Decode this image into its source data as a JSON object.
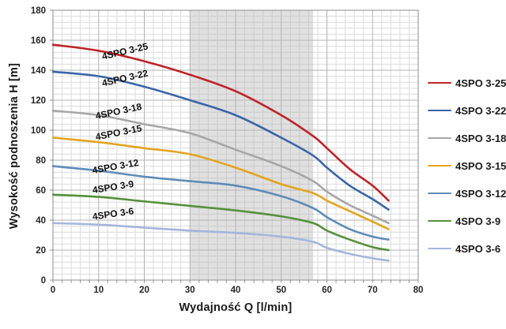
{
  "chart_data": {
    "type": "line",
    "title": "",
    "xlabel": "Wydajność Q [l/min]",
    "ylabel": "Wysokość podnoszenia H [m]",
    "xlim": [
      0,
      80
    ],
    "ylim": [
      0,
      180
    ],
    "x_ticks": [
      0,
      10,
      20,
      30,
      40,
      50,
      60,
      70,
      80
    ],
    "y_ticks": [
      0,
      20,
      40,
      60,
      80,
      100,
      120,
      140,
      160,
      180
    ],
    "x_minor_step": 2,
    "y_minor_step": 4,
    "grid": "on",
    "legend_position": "right",
    "shaded_region": {
      "x_start": 30,
      "x_end": 57,
      "color": "#b4b4b4",
      "opacity": 0.42
    },
    "x": [
      0,
      10,
      20,
      30,
      40,
      50,
      57,
      60,
      65,
      70,
      73.5
    ],
    "series": [
      {
        "name": "4SPO 3-25",
        "color": "#be2328",
        "values": [
          157,
          153,
          146,
          137,
          126,
          110,
          96,
          88,
          74,
          63,
          53
        ],
        "label": {
          "x": 158,
          "y": 65,
          "rot": -13
        }
      },
      {
        "name": "4SPO 3-22",
        "color": "#3a66a8",
        "values": [
          139,
          136,
          129,
          120,
          110,
          95,
          83,
          75,
          63,
          54,
          47
        ],
        "label": {
          "x": 158,
          "y": 99,
          "rot": -13
        }
      },
      {
        "name": "4SPO 3-18",
        "color": "#a6a6a6",
        "values": [
          113,
          110,
          104,
          98,
          87,
          76,
          66,
          59,
          50,
          43,
          38
        ],
        "label": {
          "x": 150,
          "y": 141,
          "rot": -12
        }
      },
      {
        "name": "4SPO 3-15",
        "color": "#e4a41f",
        "values": [
          95,
          92,
          88,
          84,
          75,
          64,
          58,
          53,
          46,
          39,
          34
        ],
        "label": {
          "x": 150,
          "y": 168,
          "rot": -11
        }
      },
      {
        "name": "4SPO 3-12",
        "color": "#5f8cb8",
        "values": [
          76,
          73,
          69,
          66,
          63,
          56,
          48,
          42,
          34,
          29,
          27
        ],
        "label": {
          "x": 146,
          "y": 211,
          "rot": -10
        }
      },
      {
        "name": "4SPO 3-9",
        "color": "#55913c",
        "values": [
          57,
          55.5,
          52.5,
          49.5,
          46.5,
          42.5,
          38,
          33,
          27,
          22,
          20
        ],
        "label": {
          "x": 143,
          "y": 237,
          "rot": -9
        }
      },
      {
        "name": "4SPO 3-6",
        "color": "#a3b6dc",
        "values": [
          38,
          37,
          35,
          33,
          31.5,
          29,
          25.5,
          21.5,
          17.5,
          14.5,
          13
        ],
        "label": {
          "x": 143,
          "y": 271,
          "rot": -8
        }
      }
    ],
    "colors": {
      "grid_minor": "#dcdcdc",
      "grid_major": "#b3b3b3",
      "plot_border": "#8c8c8c",
      "tick_text": "#262626"
    }
  }
}
